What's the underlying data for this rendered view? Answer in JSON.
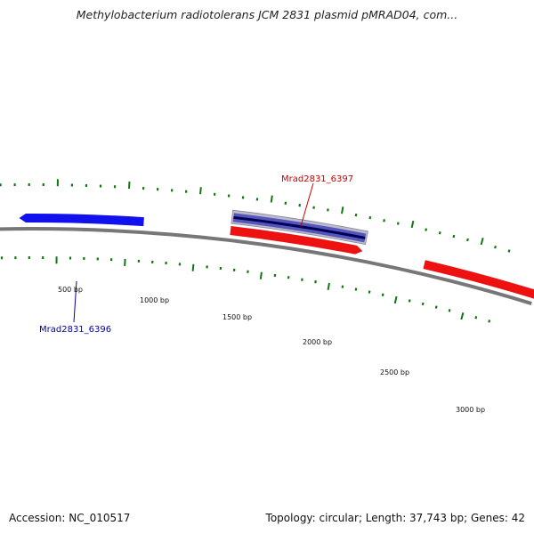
{
  "title": "Methylobacterium radiotolerans JCM 2831 plasmid pMRAD04, com...",
  "footer": {
    "accession": "Accession: NC_010517",
    "summary": "Topology: circular; Length: 37,743 bp; Genes: 42"
  },
  "colors": {
    "forward_gene": "#ee1111",
    "reverse_gene": "#1111ee",
    "backbone": "#777777",
    "ticks": "#117711",
    "highlight_fill": "#5555bb",
    "highlight_dark": "#000055",
    "label_forward": "#cc0000",
    "label_reverse": "#0000aa"
  },
  "ticks": {
    "major_labels": [
      "500 bp",
      "1000 bp",
      "1500 bp",
      "2000 bp",
      "2500 bp",
      "3000 bp"
    ],
    "major_values_bp": [
      500,
      1000,
      1500,
      2000,
      2500,
      3000
    ],
    "minor_step_bp": 100
  },
  "genes": [
    {
      "name": "Mrad2831_6396",
      "strand": "reverse",
      "labeled": true
    },
    {
      "name": "Mrad2831_6397",
      "strand": "forward",
      "labeled": true,
      "highlighted": true
    },
    {
      "name": "",
      "strand": "forward",
      "labeled": false
    }
  ],
  "labels": {
    "gene_6396": "Mrad2831_6396",
    "gene_6397": "Mrad2831_6397"
  }
}
